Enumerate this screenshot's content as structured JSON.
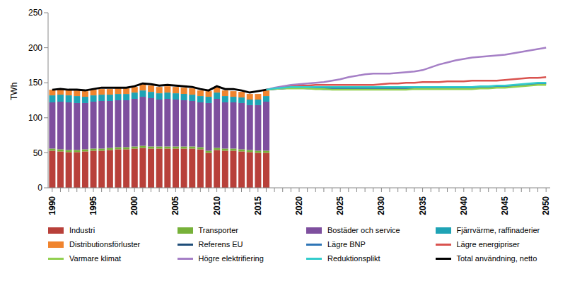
{
  "chart_data": {
    "type": "bar",
    "stacked": true,
    "grid": false,
    "legend": "bottom",
    "y_label": "TWh",
    "ylim": [
      0,
      250
    ],
    "yticks": [
      0,
      50,
      100,
      150,
      200,
      250
    ],
    "categories": [
      "1990",
      null,
      null,
      null,
      null,
      "1995",
      null,
      null,
      null,
      null,
      "2000",
      null,
      null,
      null,
      null,
      "2005",
      null,
      null,
      null,
      null,
      "2010",
      null,
      null,
      null,
      null,
      "2015",
      null,
      null,
      null,
      null,
      "2020",
      null,
      null,
      null,
      null,
      "2025",
      null,
      null,
      null,
      null,
      "2030",
      null,
      null,
      null,
      null,
      "2035",
      null,
      null,
      null,
      null,
      "2040",
      null,
      null,
      null,
      null,
      "2045",
      null,
      null,
      null,
      null,
      "2050"
    ],
    "series": [
      {
        "name": "Industri",
        "type": "bar",
        "color": "#B8403A",
        "values": [
          53,
          52,
          51,
          51,
          52,
          53,
          53,
          54,
          55,
          55,
          56,
          57,
          56,
          56,
          56,
          56,
          56,
          56,
          55,
          50,
          54,
          53,
          53,
          52,
          51,
          50,
          50,
          null,
          null,
          null,
          null,
          null,
          null,
          null,
          null,
          null,
          null,
          null,
          null,
          null,
          null,
          null,
          null,
          null,
          null,
          null,
          null,
          null,
          null,
          null,
          null,
          null,
          null,
          null,
          null,
          null,
          null,
          null,
          null,
          null,
          null
        ]
      },
      {
        "name": "Transporter",
        "type": "bar",
        "color": "#77B139",
        "values": [
          3,
          3,
          3,
          3,
          3,
          3,
          3,
          3,
          3,
          3,
          3,
          3,
          3,
          3,
          3,
          3,
          3,
          3,
          3,
          3,
          3,
          3,
          3,
          3,
          3,
          3,
          3,
          null,
          null,
          null,
          null,
          null,
          null,
          null,
          null,
          null,
          null,
          null,
          null,
          null,
          null,
          null,
          null,
          null,
          null,
          null,
          null,
          null,
          null,
          null,
          null,
          null,
          null,
          null,
          null,
          null,
          null,
          null,
          null,
          null,
          null
        ]
      },
      {
        "name": "Bostäder och service",
        "type": "bar",
        "color": "#7E4F9E",
        "values": [
          66,
          68,
          68,
          67,
          66,
          67,
          68,
          67,
          67,
          67,
          68,
          70,
          69,
          67,
          68,
          67,
          66,
          65,
          64,
          68,
          70,
          66,
          66,
          66,
          64,
          65,
          70,
          null,
          null,
          null,
          null,
          null,
          null,
          null,
          null,
          null,
          null,
          null,
          null,
          null,
          null,
          null,
          null,
          null,
          null,
          null,
          null,
          null,
          null,
          null,
          null,
          null,
          null,
          null,
          null,
          null,
          null,
          null,
          null,
          null,
          null
        ]
      },
      {
        "name": "Fjärrvärme, raffinaderier",
        "type": "bar",
        "color": "#1FA3B5",
        "values": [
          10,
          10,
          10,
          10,
          9,
          9,
          9,
          9,
          9,
          9,
          9,
          9,
          9,
          9,
          9,
          9,
          9,
          9,
          9,
          9,
          9,
          9,
          8,
          8,
          8,
          8,
          8,
          null,
          null,
          null,
          null,
          null,
          null,
          null,
          null,
          null,
          null,
          null,
          null,
          null,
          null,
          null,
          null,
          null,
          null,
          null,
          null,
          null,
          null,
          null,
          null,
          null,
          null,
          null,
          null,
          null,
          null,
          null,
          null,
          null,
          null
        ]
      },
      {
        "name": "Distributionsförluster",
        "type": "bar",
        "color": "#F0842E",
        "values": [
          8,
          8,
          8,
          8,
          8,
          8,
          8,
          8,
          8,
          8,
          8,
          9,
          9,
          9,
          9,
          9,
          9,
          9,
          8,
          8,
          8,
          8,
          8,
          8,
          8,
          8,
          8,
          null,
          null,
          null,
          null,
          null,
          null,
          null,
          null,
          null,
          null,
          null,
          null,
          null,
          null,
          null,
          null,
          null,
          null,
          null,
          null,
          null,
          null,
          null,
          null,
          null,
          null,
          null,
          null,
          null,
          null,
          null,
          null,
          null,
          null
        ]
      },
      {
        "name": "Referens EU",
        "type": "line",
        "color": "#1F4E79",
        "values": [
          null,
          null,
          null,
          null,
          null,
          null,
          null,
          null,
          null,
          null,
          null,
          null,
          null,
          null,
          null,
          null,
          null,
          null,
          null,
          null,
          null,
          null,
          null,
          null,
          null,
          null,
          140,
          141,
          142,
          143,
          143,
          143,
          143,
          142,
          142,
          142,
          142,
          142,
          142,
          142,
          142,
          142,
          142,
          142,
          143,
          143,
          143,
          143,
          143,
          143,
          143,
          143,
          144,
          144,
          145,
          145,
          146,
          147,
          148,
          149,
          150
        ]
      },
      {
        "name": "Lägre BNP",
        "type": "line",
        "color": "#2E75B6",
        "values": [
          null,
          null,
          null,
          null,
          null,
          null,
          null,
          null,
          null,
          null,
          null,
          null,
          null,
          null,
          null,
          null,
          null,
          null,
          null,
          null,
          null,
          null,
          null,
          null,
          null,
          null,
          140,
          141,
          142,
          143,
          143,
          142,
          142,
          141,
          141,
          141,
          141,
          141,
          141,
          141,
          141,
          141,
          141,
          141,
          142,
          142,
          142,
          142,
          142,
          142,
          142,
          142,
          143,
          143,
          144,
          144,
          145,
          146,
          147,
          148,
          149
        ]
      },
      {
        "name": "Lägre energipriser",
        "type": "line",
        "color": "#D9534F",
        "values": [
          null,
          null,
          null,
          null,
          null,
          null,
          null,
          null,
          null,
          null,
          null,
          null,
          null,
          null,
          null,
          null,
          null,
          null,
          null,
          null,
          null,
          null,
          null,
          null,
          null,
          null,
          140,
          142,
          144,
          145,
          146,
          146,
          147,
          147,
          147,
          147,
          147,
          147,
          147,
          147,
          148,
          149,
          149,
          150,
          150,
          151,
          151,
          151,
          152,
          152,
          152,
          153,
          153,
          153,
          153,
          154,
          155,
          156,
          157,
          157,
          158
        ]
      },
      {
        "name": "Varmare klimat",
        "type": "line",
        "color": "#92D050",
        "values": [
          null,
          null,
          null,
          null,
          null,
          null,
          null,
          null,
          null,
          null,
          null,
          null,
          null,
          null,
          null,
          null,
          null,
          null,
          null,
          null,
          null,
          null,
          null,
          null,
          null,
          null,
          140,
          141,
          142,
          142,
          142,
          142,
          141,
          141,
          140,
          140,
          140,
          140,
          140,
          140,
          140,
          140,
          140,
          140,
          141,
          141,
          141,
          141,
          141,
          141,
          141,
          141,
          142,
          142,
          143,
          143,
          144,
          145,
          146,
          147,
          147
        ]
      },
      {
        "name": "Högre elektrifiering",
        "type": "line",
        "color": "#A57FC6",
        "values": [
          null,
          null,
          null,
          null,
          null,
          null,
          null,
          null,
          null,
          null,
          null,
          null,
          null,
          null,
          null,
          null,
          null,
          null,
          null,
          null,
          null,
          null,
          null,
          null,
          null,
          null,
          140,
          143,
          145,
          147,
          148,
          149,
          150,
          151,
          153,
          155,
          158,
          160,
          162,
          163,
          163,
          163,
          164,
          165,
          166,
          168,
          172,
          176,
          179,
          182,
          184,
          186,
          187,
          188,
          189,
          190,
          192,
          194,
          196,
          198,
          200
        ]
      },
      {
        "name": "Reduktionsplikt",
        "type": "line",
        "color": "#33CCCC",
        "values": [
          null,
          null,
          null,
          null,
          null,
          null,
          null,
          null,
          null,
          null,
          null,
          null,
          null,
          null,
          null,
          null,
          null,
          null,
          null,
          null,
          null,
          null,
          null,
          null,
          null,
          null,
          140,
          142,
          143,
          144,
          144,
          144,
          144,
          144,
          144,
          144,
          144,
          144,
          144,
          144,
          144,
          144,
          144,
          144,
          144,
          144,
          144,
          144,
          144,
          144,
          144,
          144,
          145,
          145,
          146,
          146,
          147,
          148,
          149,
          150,
          150
        ]
      },
      {
        "name": "Total användning, netto",
        "type": "line",
        "color": "#000000",
        "values": [
          140,
          141,
          140,
          140,
          139,
          141,
          143,
          143,
          143,
          143,
          145,
          149,
          148,
          146,
          147,
          146,
          145,
          144,
          141,
          139,
          145,
          141,
          141,
          139,
          136,
          138,
          140,
          null,
          null,
          null,
          null,
          null,
          null,
          null,
          null,
          null,
          null,
          null,
          null,
          null,
          null,
          null,
          null,
          null,
          null,
          null,
          null,
          null,
          null,
          null,
          null,
          null,
          null,
          null,
          null,
          null,
          null,
          null,
          null,
          null,
          null
        ]
      }
    ]
  }
}
